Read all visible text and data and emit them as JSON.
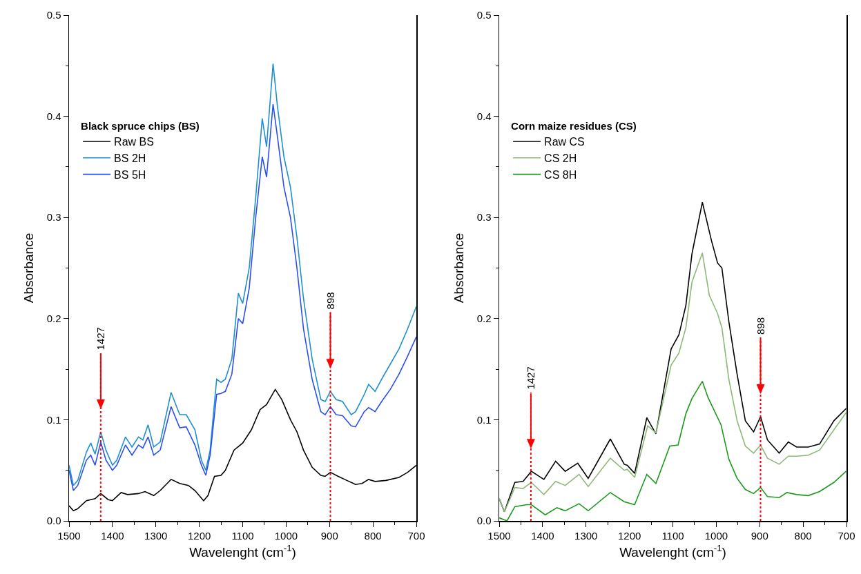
{
  "chart_data": [
    {
      "type": "line",
      "xlabel": "Wavelenght (cm$^{-1}$)",
      "ylabel": "Absorbance",
      "legend_title": "Black spruce chips (BS)",
      "legend": "top left",
      "xlim": [
        1500,
        700
      ],
      "xticks": [
        1500,
        1400,
        1300,
        1200,
        1100,
        1000,
        900,
        800,
        700
      ],
      "ylim": [
        0,
        0.5
      ],
      "yticks": [
        {
          "value": 0,
          "label": "0.0"
        },
        {
          "value": 0.1,
          "label": "0.1"
        },
        {
          "value": 0.2,
          "label": "0.2"
        },
        {
          "value": 0.3,
          "label": "0.3"
        },
        {
          "value": 0.4,
          "label": "0.4"
        },
        {
          "value": 0.5,
          "label": "0.5"
        }
      ],
      "ref_lines": [
        {
          "axis": "x",
          "value": 1427,
          "label": "1427",
          "color": "#ff0000",
          "line_style": "dotted"
        },
        {
          "axis": "x",
          "value": 898,
          "label": "898",
          "color": "#ff0000",
          "line_style": "dotted"
        }
      ],
      "series": [
        {
          "name": "Raw BS",
          "color": "#000000",
          "x": [
            1500,
            1490,
            1480,
            1460,
            1440,
            1427,
            1410,
            1400,
            1380,
            1365,
            1340,
            1325,
            1305,
            1290,
            1265,
            1245,
            1225,
            1210,
            1190,
            1180,
            1165,
            1150,
            1140,
            1120,
            1100,
            1080,
            1060,
            1045,
            1025,
            1010,
            990,
            975,
            960,
            940,
            920,
            910,
            898,
            880,
            860,
            840,
            825,
            810,
            795,
            770,
            740,
            720,
            700
          ],
          "values": [
            0.015,
            0.01,
            0.012,
            0.02,
            0.022,
            0.027,
            0.021,
            0.02,
            0.028,
            0.026,
            0.027,
            0.029,
            0.025,
            0.03,
            0.041,
            0.037,
            0.035,
            0.03,
            0.02,
            0.025,
            0.044,
            0.045,
            0.05,
            0.07,
            0.077,
            0.09,
            0.11,
            0.115,
            0.13,
            0.12,
            0.1,
            0.088,
            0.07,
            0.053,
            0.045,
            0.044,
            0.048,
            0.044,
            0.04,
            0.036,
            0.037,
            0.041,
            0.039,
            0.04,
            0.043,
            0.048,
            0.055
          ]
        },
        {
          "name": "BS 2H",
          "color": "#1f8fcf",
          "x": [
            1500,
            1490,
            1480,
            1460,
            1450,
            1440,
            1427,
            1415,
            1400,
            1390,
            1370,
            1355,
            1340,
            1330,
            1318,
            1305,
            1290,
            1265,
            1245,
            1230,
            1210,
            1195,
            1185,
            1175,
            1160,
            1150,
            1140,
            1125,
            1110,
            1100,
            1085,
            1070,
            1055,
            1045,
            1030,
            1020,
            1005,
            990,
            975,
            960,
            940,
            920,
            910,
            898,
            885,
            870,
            850,
            840,
            820,
            810,
            795,
            780,
            760,
            740,
            720,
            700
          ],
          "values": [
            0.055,
            0.035,
            0.04,
            0.068,
            0.077,
            0.066,
            0.088,
            0.07,
            0.055,
            0.06,
            0.083,
            0.073,
            0.083,
            0.08,
            0.095,
            0.073,
            0.078,
            0.127,
            0.105,
            0.105,
            0.09,
            0.06,
            0.05,
            0.07,
            0.14,
            0.137,
            0.14,
            0.16,
            0.225,
            0.215,
            0.25,
            0.32,
            0.398,
            0.37,
            0.452,
            0.41,
            0.36,
            0.33,
            0.28,
            0.22,
            0.16,
            0.12,
            0.118,
            0.128,
            0.12,
            0.118,
            0.105,
            0.108,
            0.125,
            0.135,
            0.128,
            0.14,
            0.155,
            0.17,
            0.19,
            0.212
          ]
        },
        {
          "name": "BS 5H",
          "color": "#2a4ff0",
          "x": [
            1500,
            1490,
            1480,
            1460,
            1450,
            1440,
            1427,
            1415,
            1400,
            1390,
            1370,
            1355,
            1340,
            1330,
            1318,
            1305,
            1290,
            1265,
            1245,
            1230,
            1210,
            1195,
            1185,
            1175,
            1160,
            1150,
            1140,
            1125,
            1110,
            1100,
            1085,
            1070,
            1055,
            1045,
            1030,
            1020,
            1005,
            990,
            975,
            960,
            940,
            920,
            910,
            898,
            885,
            870,
            850,
            840,
            820,
            810,
            795,
            780,
            760,
            740,
            720,
            700
          ],
          "values": [
            0.05,
            0.03,
            0.035,
            0.06,
            0.065,
            0.055,
            0.078,
            0.06,
            0.05,
            0.055,
            0.075,
            0.065,
            0.075,
            0.072,
            0.083,
            0.065,
            0.07,
            0.113,
            0.092,
            0.093,
            0.075,
            0.055,
            0.045,
            0.065,
            0.125,
            0.126,
            0.128,
            0.145,
            0.2,
            0.195,
            0.23,
            0.3,
            0.36,
            0.34,
            0.412,
            0.38,
            0.33,
            0.3,
            0.25,
            0.19,
            0.14,
            0.108,
            0.105,
            0.113,
            0.105,
            0.104,
            0.094,
            0.093,
            0.108,
            0.112,
            0.108,
            0.118,
            0.13,
            0.145,
            0.163,
            0.182
          ]
        }
      ]
    },
    {
      "type": "line",
      "xlabel": "Wavelenght (cm$^{-1}$)",
      "ylabel": "Absorbance",
      "legend_title": "Corn maize residues (CS)",
      "legend": "top left",
      "xlim": [
        1500,
        700
      ],
      "xticks": [
        1500,
        1400,
        1300,
        1200,
        1100,
        1000,
        900,
        800,
        700
      ],
      "ylim": [
        0,
        0.5
      ],
      "yticks": [
        {
          "value": 0,
          "label": "0.0"
        },
        {
          "value": 0.1,
          "label": "0.1"
        },
        {
          "value": 0.2,
          "label": "0.2"
        },
        {
          "value": 0.3,
          "label": "0.3"
        },
        {
          "value": 0.4,
          "label": "0.4"
        },
        {
          "value": 0.5,
          "label": "0.5"
        }
      ],
      "ref_lines": [
        {
          "axis": "x",
          "value": 1427,
          "label": "1427",
          "color": "#ff0000",
          "line_style": "dotted"
        },
        {
          "axis": "x",
          "value": 898,
          "label": "898",
          "color": "#ff0000",
          "line_style": "dotted"
        }
      ],
      "series": [
        {
          "name": "Raw CS",
          "color": "#000000",
          "x": [
            1500,
            1488,
            1464,
            1445,
            1426,
            1397,
            1370,
            1348,
            1319,
            1295,
            1244,
            1212,
            1205,
            1188,
            1160,
            1139,
            1104,
            1086,
            1070,
            1056,
            1032,
            1011,
            997,
            987,
            971,
            952,
            933,
            914,
            898,
            882,
            855,
            834,
            815,
            788,
            762,
            729,
            701
          ],
          "values": [
            0.022,
            0.009,
            0.038,
            0.039,
            0.049,
            0.041,
            0.059,
            0.049,
            0.057,
            0.042,
            0.081,
            0.056,
            0.055,
            0.047,
            0.102,
            0.086,
            0.17,
            0.184,
            0.213,
            0.264,
            0.315,
            0.277,
            0.255,
            0.25,
            0.197,
            0.145,
            0.099,
            0.088,
            0.103,
            0.08,
            0.067,
            0.078,
            0.073,
            0.073,
            0.076,
            0.099,
            0.111
          ]
        },
        {
          "name": "CS 2H",
          "color": "#8fb878",
          "x": [
            1500,
            1488,
            1464,
            1445,
            1426,
            1397,
            1370,
            1348,
            1316,
            1295,
            1244,
            1212,
            1205,
            1188,
            1158,
            1139,
            1104,
            1086,
            1070,
            1056,
            1032,
            1016,
            997,
            987,
            971,
            952,
            933,
            914,
            898,
            882,
            855,
            834,
            815,
            788,
            762,
            729,
            701
          ],
          "values": [
            0.022,
            0.009,
            0.033,
            0.032,
            0.038,
            0.026,
            0.039,
            0.035,
            0.046,
            0.034,
            0.062,
            0.05,
            0.051,
            0.043,
            0.094,
            0.087,
            0.154,
            0.166,
            0.191,
            0.236,
            0.265,
            0.223,
            0.205,
            0.191,
            0.14,
            0.099,
            0.074,
            0.067,
            0.075,
            0.062,
            0.056,
            0.064,
            0.064,
            0.065,
            0.07,
            0.09,
            0.107
          ]
        },
        {
          "name": "CS 8H",
          "color": "#1a9a1a",
          "x": [
            1500,
            1482,
            1464,
            1437,
            1426,
            1394,
            1367,
            1348,
            1316,
            1295,
            1244,
            1212,
            1188,
            1160,
            1139,
            1107,
            1088,
            1070,
            1056,
            1032,
            1019,
            989,
            971,
            952,
            933,
            914,
            898,
            882,
            855,
            837,
            815,
            788,
            762,
            729,
            701
          ],
          "values": [
            0.003,
            0,
            0.014,
            0.016,
            0.016,
            0.006,
            0.013,
            0.01,
            0.017,
            0.01,
            0.028,
            0.019,
            0.016,
            0.046,
            0.037,
            0.074,
            0.075,
            0.106,
            0.121,
            0.138,
            0.122,
            0.095,
            0.061,
            0.042,
            0.031,
            0.027,
            0.033,
            0.024,
            0.023,
            0.028,
            0.026,
            0.025,
            0.029,
            0.038,
            0.049
          ]
        }
      ]
    }
  ]
}
